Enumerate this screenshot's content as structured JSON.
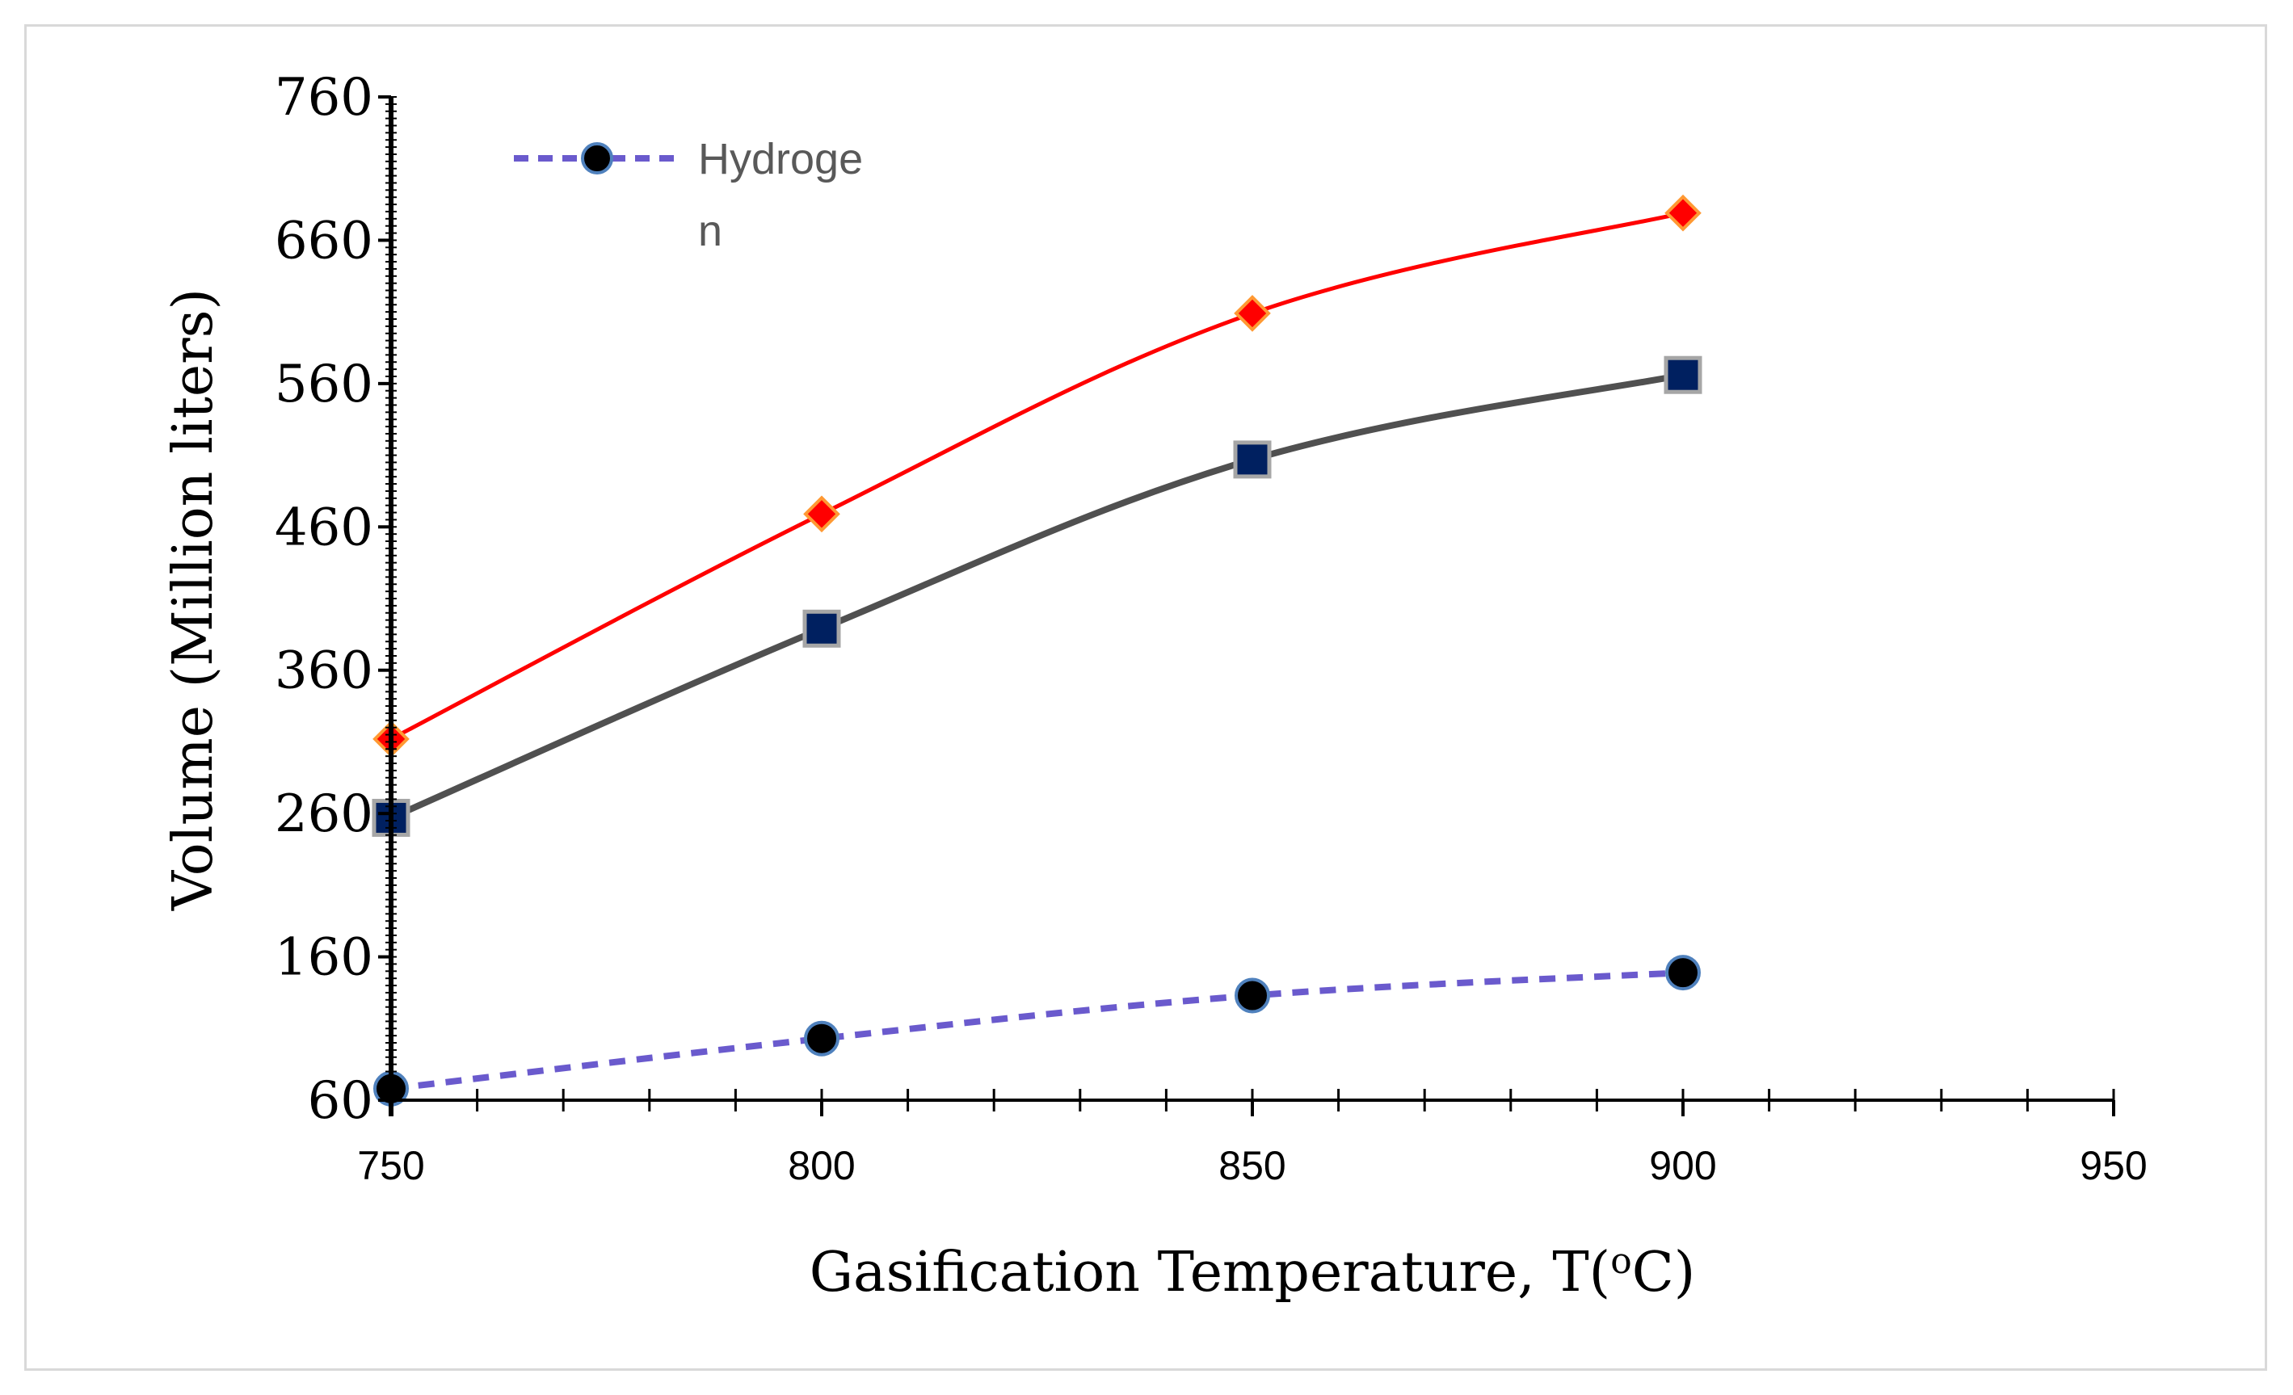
{
  "chart_data": {
    "type": "line",
    "title": "",
    "xlabel": "Gasification Temperature, T(",
    "xlabel_sup": "o",
    "xlabel_end": "C)",
    "ylabel": "Volume (Million liters)",
    "xlim": [
      750,
      950
    ],
    "ylim": [
      60,
      760
    ],
    "x_ticks": [
      750,
      800,
      850,
      900,
      950
    ],
    "y_ticks": [
      60,
      160,
      260,
      360,
      460,
      560,
      660,
      760
    ],
    "x": [
      750,
      800,
      850,
      900
    ],
    "series": [
      {
        "name": "Hydrogen",
        "legend_line1": "Hydroge",
        "legend_line2": "n",
        "values": [
          68,
          103,
          133,
          149
        ],
        "color": "#6a5acd",
        "marker": "circle",
        "marker_fill": "#000000",
        "marker_edge": "#4f81bd",
        "dash": true,
        "show_in_legend": true
      },
      {
        "name": "",
        "values": [
          257,
          389,
          507,
          566
        ],
        "color": "#505050",
        "marker": "square",
        "marker_fill": "#002060",
        "marker_edge": "#a6a6a6",
        "dash": false,
        "show_in_legend": false
      },
      {
        "name": "",
        "values": [
          312,
          469,
          609,
          679
        ],
        "color": "#ff0000",
        "marker": "diamond",
        "marker_fill": "#ff0000",
        "marker_edge": "#ff9933",
        "dash": false,
        "show_in_legend": false
      }
    ],
    "legend_position": "top-left"
  }
}
